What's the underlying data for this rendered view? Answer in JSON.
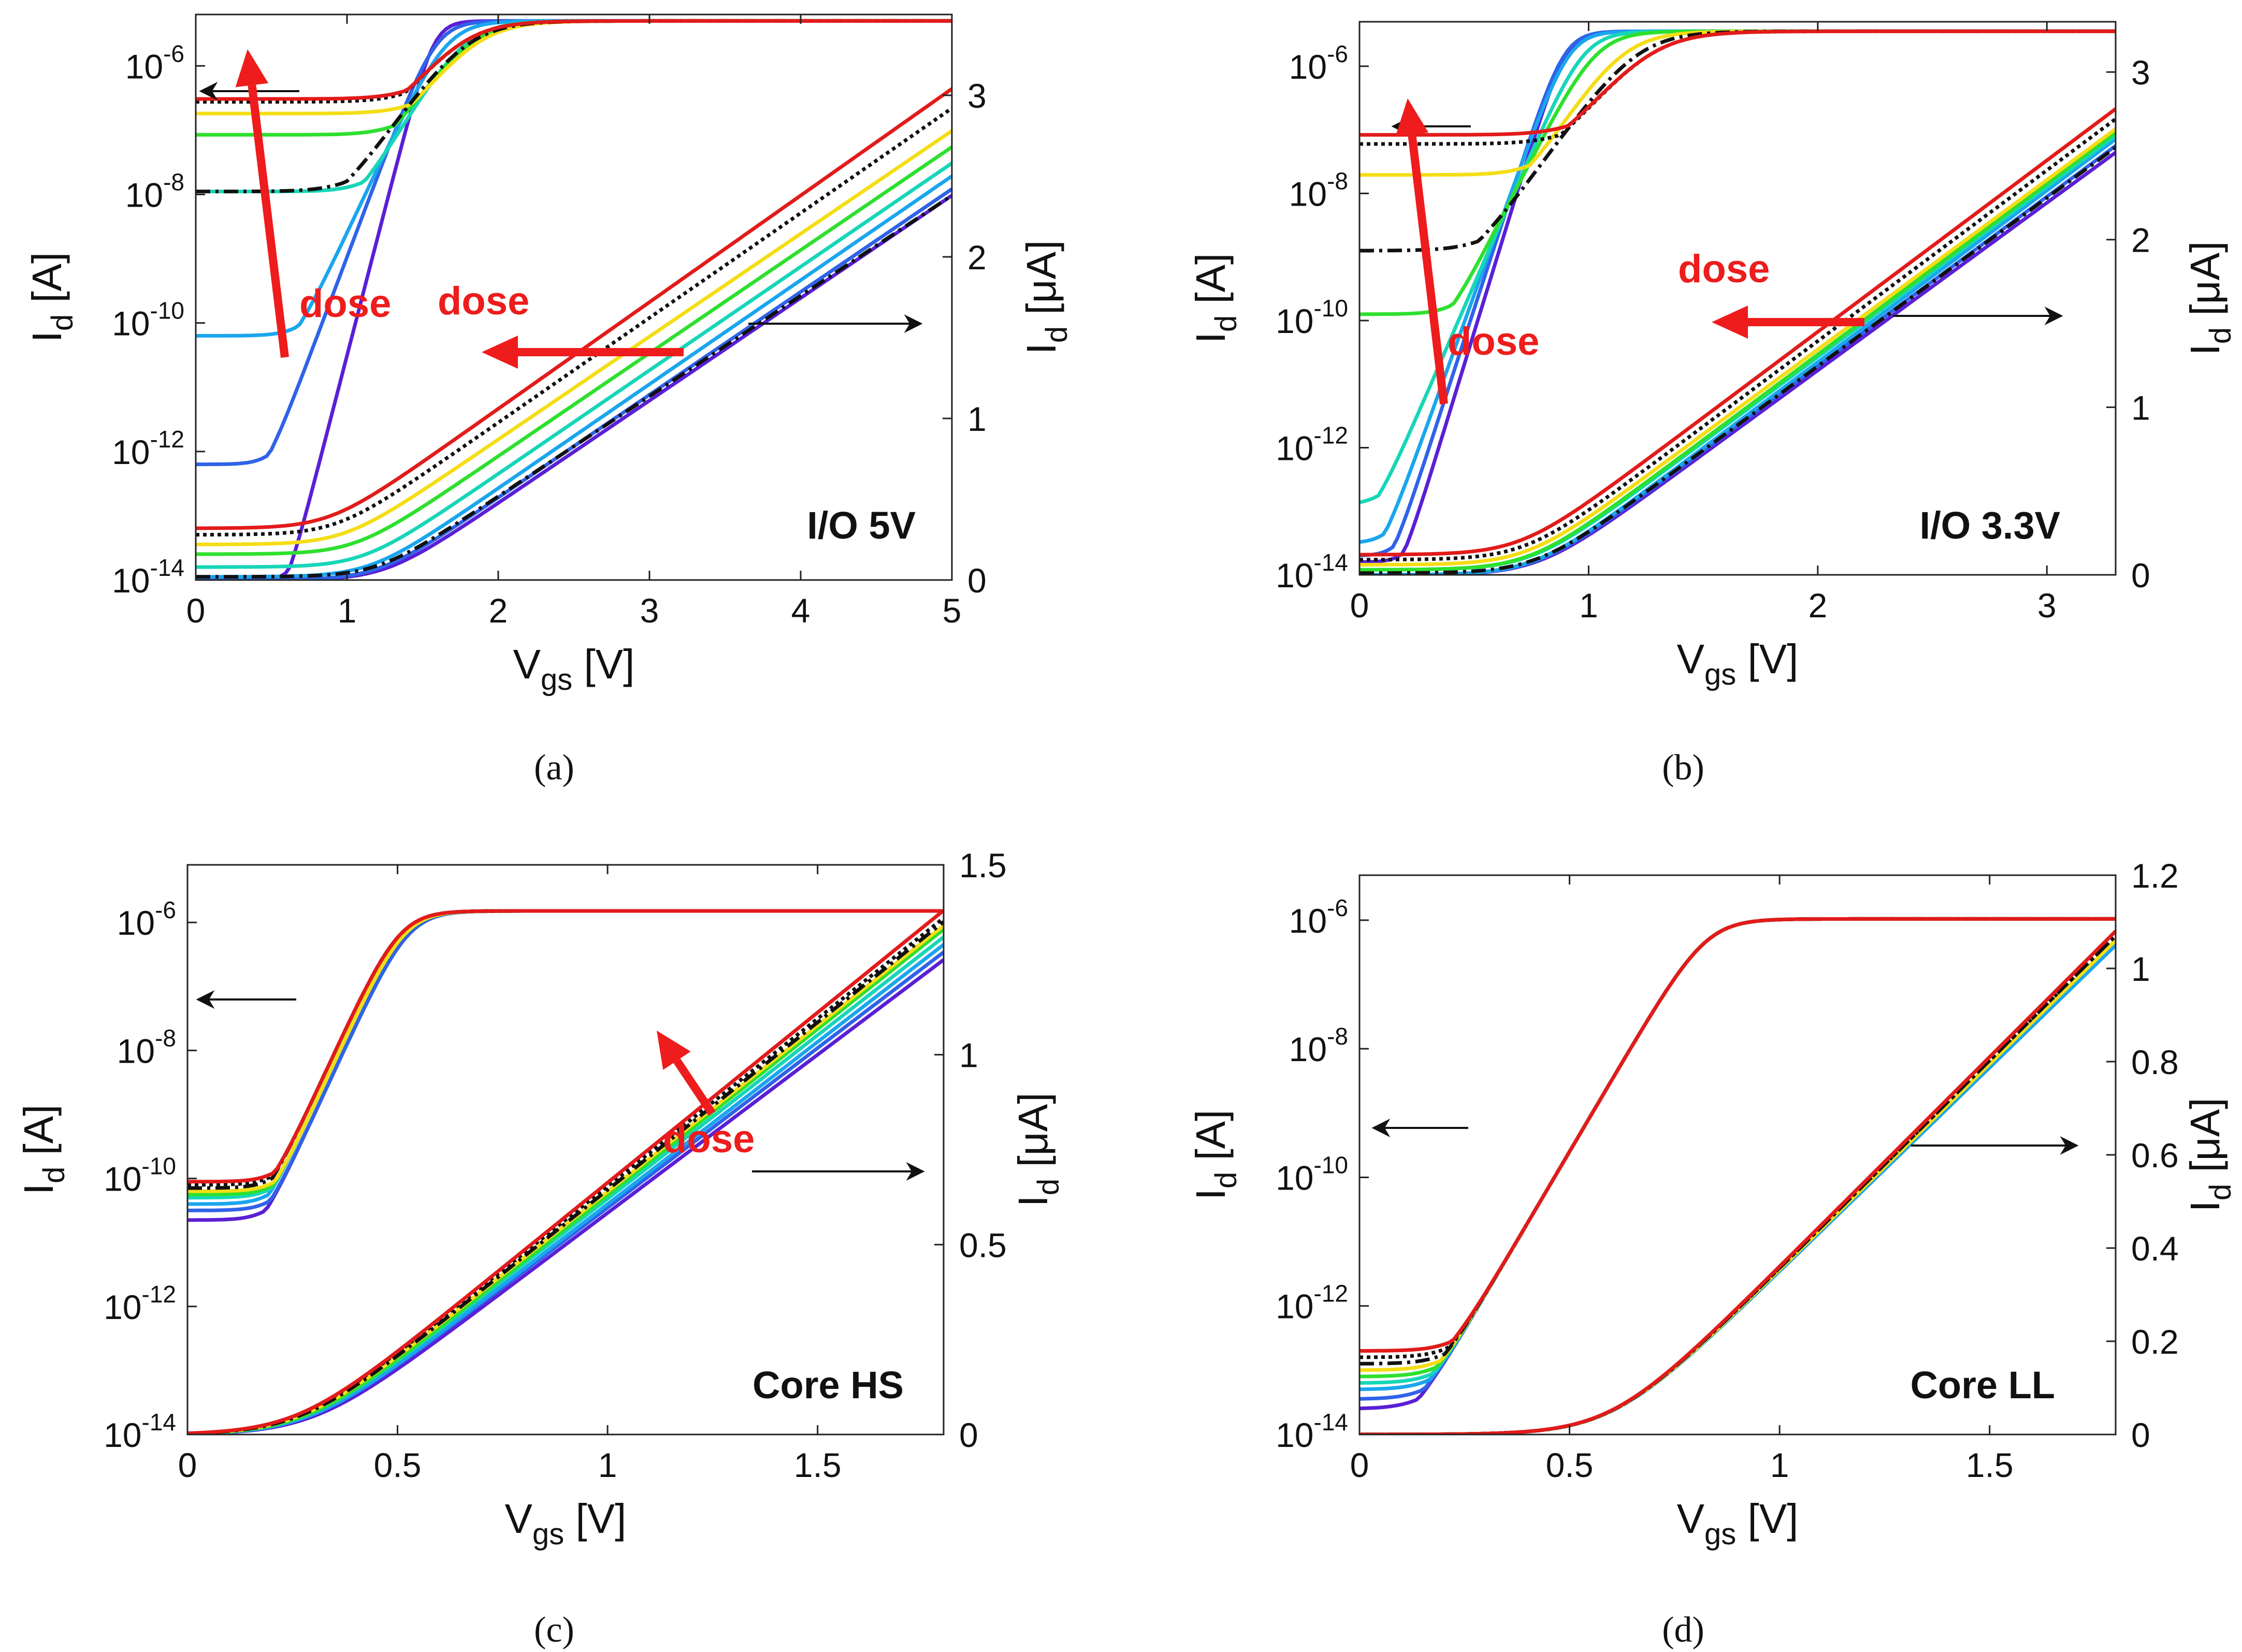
{
  "figure": {
    "panel_labels": [
      "(a)",
      "(b)",
      "(c)",
      "(d)"
    ]
  },
  "style": {
    "dose_series_colors": [
      "#5a1fd6",
      "#2f63e8",
      "#1aa6ee",
      "#17d6b8",
      "#2ee02e",
      "#f5dd16",
      "#111111",
      "#111111",
      "#e21b1b"
    ],
    "dose_series_dash": [
      "solid",
      "solid",
      "solid",
      "solid",
      "solid",
      "solid",
      "dashdot",
      "dotted",
      "solid"
    ],
    "annotation_color": "#ee1c1c",
    "arrow_color": "#111111"
  },
  "chart_data": [
    {
      "type": "line",
      "panel": "(a)",
      "device_label": "I/O 5V",
      "xlabel": "V",
      "xlabel_sub": "gs",
      "xlabel_unit": " [V]",
      "ylabel_left": "I",
      "ylabel_left_sub": "d",
      "ylabel_left_unit": " [A]",
      "ylabel_right": "I",
      "ylabel_right_sub": "d",
      "ylabel_right_unit": " [μA]",
      "xlim": [
        0,
        5
      ],
      "xticks": [
        "0",
        "1",
        "2",
        "3",
        "4",
        "5"
      ],
      "ylim_left_log10": [
        -14,
        -5.2
      ],
      "yticks_left_exp": [
        "-14",
        "-12",
        "-10",
        "-8",
        "-6"
      ],
      "ylim_right": [
        0,
        3.5
      ],
      "yticks_right": [
        "0",
        "1",
        "2",
        "3"
      ],
      "left_axis_arrow_label": "",
      "dose_labels": [
        "dose",
        "dose"
      ],
      "series_log": {
        "vmax": 5,
        "off_log10": [
          -14.0,
          -12.2,
          -10.2,
          -7.95,
          -7.05,
          -6.7,
          -7.95,
          -6.5,
          -6.45
        ],
        "vt": [
          1.1,
          0.9,
          0.8,
          0.7,
          0.6,
          0.55,
          0.5,
          0.45,
          0.45
        ],
        "ss": [
          0.11,
          0.16,
          0.2,
          0.25,
          0.28,
          0.3,
          0.3,
          0.3,
          0.3
        ],
        "sat_log10": -5.3,
        "k": 0.55
      },
      "series_lin": {
        "vmax": 5,
        "off": [
          0.0,
          0.0,
          0.02,
          0.08,
          0.16,
          0.22,
          0.02,
          0.28,
          0.32
        ],
        "vt": [
          1.25,
          1.2,
          1.15,
          1.1,
          1.05,
          0.98,
          1.2,
          0.93,
          0.88
        ],
        "end": [
          2.38,
          2.42,
          2.5,
          2.58,
          2.68,
          2.78,
          2.38,
          2.92,
          3.04
        ]
      }
    },
    {
      "type": "line",
      "panel": "(b)",
      "device_label": "I/O 3.3V",
      "xlabel": "V",
      "xlabel_sub": "gs",
      "xlabel_unit": " [V]",
      "ylabel_left": "I",
      "ylabel_left_sub": "d",
      "ylabel_left_unit": " [A]",
      "ylabel_right": "I",
      "ylabel_right_sub": "d",
      "ylabel_right_unit": " [μA]",
      "xlim": [
        0,
        3.3
      ],
      "xticks": [
        "0",
        "1",
        "2",
        "3"
      ],
      "ylim_left_log10": [
        -14,
        -5.3
      ],
      "yticks_left_exp": [
        "-14",
        "-12",
        "-10",
        "-8",
        "-6"
      ],
      "ylim_right": [
        0,
        3.3
      ],
      "yticks_right": [
        "0",
        "1",
        "2",
        "3"
      ],
      "dose_labels": [
        "dose",
        "dose"
      ],
      "series_log": {
        "vmax": 3.3,
        "off_log10": [
          -13.8,
          -13.7,
          -13.5,
          -12.9,
          -9.9,
          -7.7,
          -8.9,
          -7.2,
          -7.05
        ],
        "vt": [
          0.55,
          0.52,
          0.5,
          0.48,
          0.45,
          0.4,
          0.38,
          0.35,
          0.35
        ],
        "ss": [
          0.085,
          0.09,
          0.1,
          0.12,
          0.14,
          0.18,
          0.2,
          0.22,
          0.22
        ],
        "sat_log10": -5.45,
        "k": 0.55
      },
      "series_lin": {
        "vmax": 3.3,
        "off": [
          0.0,
          0.0,
          0.0,
          0.03,
          0.03,
          0.06,
          0.01,
          0.09,
          0.12
        ],
        "vt": [
          0.78,
          0.77,
          0.76,
          0.75,
          0.74,
          0.73,
          0.77,
          0.72,
          0.7
        ],
        "end": [
          2.52,
          2.56,
          2.6,
          2.62,
          2.64,
          2.66,
          2.55,
          2.72,
          2.78
        ]
      }
    },
    {
      "type": "line",
      "panel": "(c)",
      "device_label": "Core HS",
      "xlabel": "V",
      "xlabel_sub": "gs",
      "xlabel_unit": " [V]",
      "ylabel_left": "I",
      "ylabel_left_sub": "d",
      "ylabel_left_unit": " [A]",
      "ylabel_right": "I",
      "ylabel_right_sub": "d",
      "ylabel_right_unit": " [μA]",
      "xlim": [
        0,
        1.8
      ],
      "xticks": [
        "0",
        "0.5",
        "1",
        "1.5"
      ],
      "ylim_left_log10": [
        -14,
        -5.1
      ],
      "yticks_left_exp": [
        "-14",
        "-12",
        "-10",
        "-8",
        "-6"
      ],
      "ylim_right": [
        0,
        1.5
      ],
      "yticks_right": [
        "0",
        "0.5",
        "1",
        "1.5"
      ],
      "dose_labels": [
        "dose"
      ],
      "series_log": {
        "vmax": 1.8,
        "off_log10": [
          -10.65,
          -10.5,
          -10.4,
          -10.3,
          -10.25,
          -10.2,
          -10.15,
          -10.1,
          -10.05
        ],
        "vt": [
          0.26,
          0.26,
          0.25,
          0.25,
          0.25,
          0.25,
          0.24,
          0.24,
          0.24
        ],
        "ss": [
          0.07,
          0.07,
          0.07,
          0.07,
          0.07,
          0.07,
          0.07,
          0.07,
          0.07
        ],
        "sat_log10": -5.82,
        "k": 0.55
      },
      "series_lin": {
        "vmax": 1.8,
        "off": [
          0,
          0,
          0,
          0,
          0,
          0,
          0,
          0,
          0
        ],
        "vt": [
          0.3,
          0.29,
          0.29,
          0.28,
          0.28,
          0.27,
          0.27,
          0.26,
          0.26
        ],
        "end": [
          1.25,
          1.27,
          1.29,
          1.31,
          1.33,
          1.34,
          1.35,
          1.36,
          1.38
        ]
      }
    },
    {
      "type": "line",
      "panel": "(d)",
      "device_label": "Core LL",
      "xlabel": "V",
      "xlabel_sub": "gs",
      "xlabel_unit": " [V]",
      "ylabel_left": "I",
      "ylabel_left_sub": "d",
      "ylabel_left_unit": " [A]",
      "ylabel_right": "I",
      "ylabel_right_sub": "d",
      "ylabel_right_unit": " [μA]",
      "xlim": [
        0,
        1.8
      ],
      "xticks": [
        "0",
        "0.5",
        "1",
        "1.5"
      ],
      "ylim_left_log10": [
        -14,
        -5.3
      ],
      "yticks_left_exp": [
        "-14",
        "-12",
        "-10",
        "-8",
        "-6"
      ],
      "ylim_right": [
        0,
        1.2
      ],
      "yticks_right": [
        "0",
        "0.2",
        "0.4",
        "0.6",
        "0.8",
        "1",
        "1.2"
      ],
      "dose_labels": [],
      "series_log": {
        "vmax": 1.8,
        "off_log10": [
          -13.6,
          -13.45,
          -13.3,
          -13.2,
          -13.1,
          -13.0,
          -12.9,
          -12.8,
          -12.7
        ],
        "vt": [
          0.5,
          0.5,
          0.5,
          0.5,
          0.5,
          0.5,
          0.5,
          0.5,
          0.5
        ],
        "ss": [
          0.09,
          0.09,
          0.09,
          0.09,
          0.09,
          0.09,
          0.09,
          0.09,
          0.09
        ],
        "sat_log10": -5.98,
        "k": 0.5
      },
      "series_lin": {
        "vmax": 1.8,
        "off": [
          0,
          0,
          0,
          0,
          0,
          0,
          0,
          0,
          0
        ],
        "vt": [
          0.6,
          0.6,
          0.6,
          0.6,
          0.6,
          0.6,
          0.6,
          0.6,
          0.6
        ],
        "end": [
          1.05,
          1.05,
          1.05,
          1.06,
          1.06,
          1.06,
          1.07,
          1.07,
          1.08
        ]
      }
    }
  ]
}
